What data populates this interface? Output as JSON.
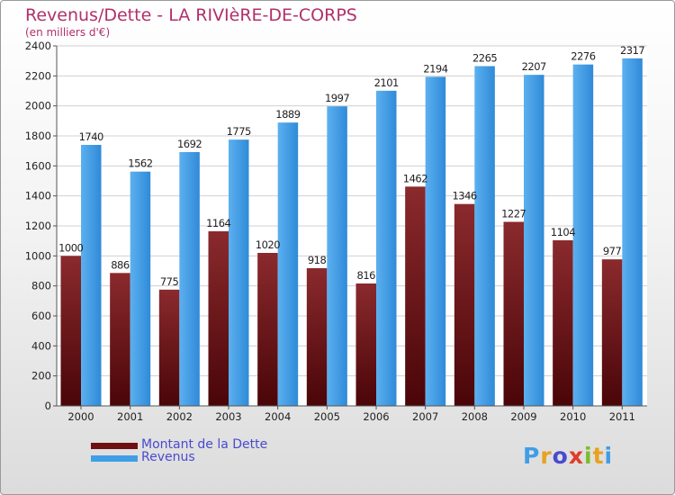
{
  "title": "Revenus/Dette - LA RIVIèRE-DE-CORPS",
  "subtitle": "(en milliers d'€)",
  "legend": [
    {
      "label": "Montant de la Dette",
      "color": "#6e0f12"
    },
    {
      "label": "Revenus",
      "color": "#3f9ee6"
    }
  ],
  "logo": {
    "text": "Proxiti"
  },
  "chart_data": {
    "type": "bar",
    "categories": [
      "2000",
      "2001",
      "2002",
      "2003",
      "2004",
      "2005",
      "2006",
      "2007",
      "2008",
      "2009",
      "2010",
      "2011"
    ],
    "series": [
      {
        "name": "Montant de la Dette",
        "color": "#6e0f12",
        "values": [
          1000,
          886,
          775,
          1164,
          1020,
          918,
          816,
          1462,
          1346,
          1227,
          1104,
          977
        ]
      },
      {
        "name": "Revenus",
        "color": "#3f9ee6",
        "values": [
          1740,
          1562,
          1692,
          1775,
          1889,
          1997,
          2101,
          2194,
          2265,
          2207,
          2276,
          2317
        ]
      }
    ],
    "yticks": [
      0,
      200,
      400,
      600,
      800,
      1000,
      1200,
      1400,
      1600,
      1800,
      2000,
      2200,
      2400
    ],
    "ylim": [
      0,
      2400
    ],
    "grid": true
  }
}
